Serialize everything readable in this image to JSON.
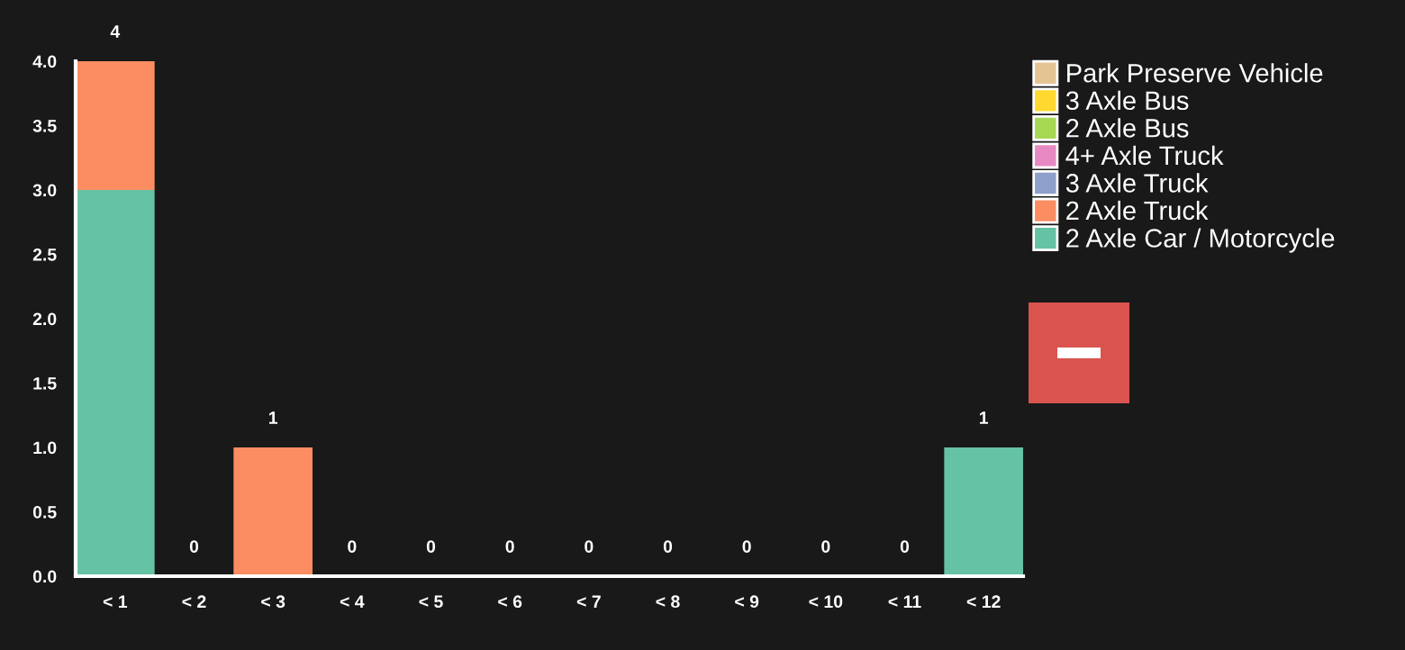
{
  "chart_data": {
    "type": "bar",
    "stacked": true,
    "categories": [
      "< 1",
      "< 2",
      "< 3",
      "< 4",
      "< 5",
      "< 6",
      "< 7",
      "< 8",
      "< 9",
      "< 10",
      "< 11",
      "< 12"
    ],
    "series": [
      {
        "name": "2 Axle Car / Motorcycle",
        "color": "#66c2a5",
        "values": [
          3,
          0,
          0,
          0,
          0,
          0,
          0,
          0,
          0,
          0,
          0,
          1
        ]
      },
      {
        "name": "2 Axle Truck",
        "color": "#fc8d62",
        "values": [
          1,
          0,
          1,
          0,
          0,
          0,
          0,
          0,
          0,
          0,
          0,
          0
        ]
      },
      {
        "name": "3 Axle Truck",
        "color": "#8da0cb",
        "values": [
          0,
          0,
          0,
          0,
          0,
          0,
          0,
          0,
          0,
          0,
          0,
          0
        ]
      },
      {
        "name": "4+ Axle Truck",
        "color": "#e78ac3",
        "values": [
          0,
          0,
          0,
          0,
          0,
          0,
          0,
          0,
          0,
          0,
          0,
          0
        ]
      },
      {
        "name": "2 Axle Bus",
        "color": "#a6d854",
        "values": [
          0,
          0,
          0,
          0,
          0,
          0,
          0,
          0,
          0,
          0,
          0,
          0
        ]
      },
      {
        "name": "3 Axle Bus",
        "color": "#ffd92f",
        "values": [
          0,
          0,
          0,
          0,
          0,
          0,
          0,
          0,
          0,
          0,
          0,
          0
        ]
      },
      {
        "name": "Park Preserve Vehicle",
        "color": "#e5c494",
        "values": [
          0,
          0,
          0,
          0,
          0,
          0,
          0,
          0,
          0,
          0,
          0,
          0
        ]
      }
    ],
    "ylim": [
      0,
      4
    ],
    "yticks": [
      {
        "value": 0,
        "label": "0.0"
      },
      {
        "value": 0.5,
        "label": "0.5"
      },
      {
        "value": 1,
        "label": "1.0"
      },
      {
        "value": 1.5,
        "label": "1.5"
      },
      {
        "value": 2,
        "label": "2.0"
      },
      {
        "value": 2.5,
        "label": "2.5"
      },
      {
        "value": 3,
        "label": "3.0"
      },
      {
        "value": 3.5,
        "label": "3.5"
      },
      {
        "value": 4,
        "label": "4.0"
      }
    ],
    "totals": [
      "4",
      "0",
      "1",
      "0",
      "0",
      "0",
      "0",
      "0",
      "0",
      "0",
      "0",
      "1"
    ],
    "legend": "top right",
    "grid": false
  }
}
